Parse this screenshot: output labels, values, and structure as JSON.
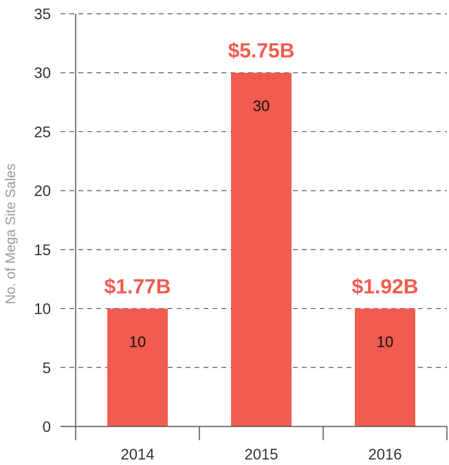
{
  "chart_data": {
    "type": "bar",
    "ylabel": "No. of Mega Site Sales",
    "xlabel": "",
    "title": "",
    "categories": [
      "2014",
      "2015",
      "2016"
    ],
    "values": [
      10,
      30,
      10
    ],
    "bar_labels": [
      "10",
      "30",
      "10"
    ],
    "top_labels": [
      "$1.77B",
      "$5.75B",
      "$1.92B"
    ],
    "yticks": [
      0,
      5,
      10,
      15,
      20,
      25,
      30,
      35
    ],
    "ylim": [
      0,
      35
    ],
    "grid": "horizontal dashed",
    "legend": "none",
    "colors": {
      "bar": "#F15B50",
      "top_label": "#F15B50",
      "grid": "#555555",
      "axis": "#555555"
    }
  }
}
